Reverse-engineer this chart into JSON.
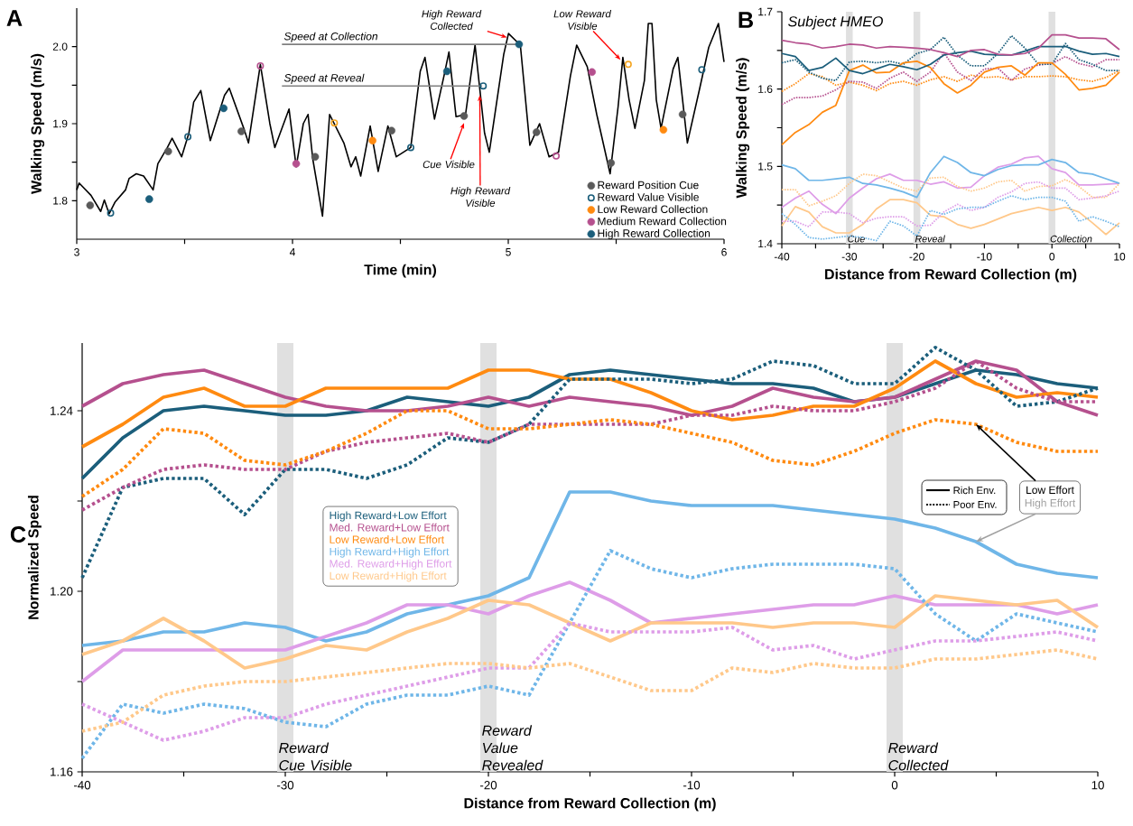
{
  "chart_data": [
    {
      "type": "line",
      "title": "A",
      "xlabel": "Time (min)",
      "ylabel": "Walking Speed (m/s)",
      "xlim": [
        3,
        6
      ],
      "ylim": [
        1.75,
        2.05
      ],
      "xticks": [
        3,
        {
          "value": 3.5,
          "label": null
        },
        4,
        {
          "value": 4.5,
          "label": null
        },
        5,
        {
          "value": 5.5,
          "label": null
        },
        6
      ],
      "yticks": [
        1.8,
        {
          "value": 1.85,
          "label": null
        },
        1.9,
        {
          "value": 1.95,
          "label": null
        },
        {
          "value": 2,
          "label": "2.0"
        }
      ],
      "legend": "bottom right",
      "series": [
        {
          "color": "#000000",
          "x": [
            3.0,
            3.011,
            3.066,
            3.111,
            3.128,
            3.15,
            3.177,
            3.226,
            3.243,
            3.276,
            3.31,
            3.354,
            3.376,
            3.42,
            3.442,
            3.486,
            3.52,
            3.542,
            3.575,
            3.619,
            3.685,
            3.707,
            3.774,
            3.796,
            3.851,
            3.895,
            3.918,
            3.984,
            4.017,
            4.05,
            4.072,
            4.094,
            4.139,
            4.172,
            4.238,
            4.271,
            4.293,
            4.316,
            4.36,
            4.397,
            4.442,
            4.481,
            4.548,
            4.57,
            4.592,
            4.614,
            4.658,
            4.702,
            4.725,
            4.758,
            4.802,
            4.846,
            4.89,
            4.912,
            4.979,
            5.001,
            5.056,
            5.1,
            5.145,
            5.189,
            5.233,
            5.288,
            5.317,
            5.366,
            5.41,
            5.472,
            5.509,
            5.531,
            5.56,
            5.587,
            5.631,
            5.649,
            5.666,
            5.686,
            5.708,
            5.764,
            5.786,
            5.83,
            5.885,
            5.929,
            5.974,
            6.0
          ],
          "values": [
            1.814,
            1.823,
            1.807,
            1.786,
            1.801,
            1.783,
            1.798,
            1.814,
            1.829,
            1.835,
            1.832,
            1.814,
            1.848,
            1.869,
            1.881,
            1.857,
            1.888,
            1.928,
            1.943,
            1.878,
            1.937,
            1.946,
            1.894,
            1.875,
            1.977,
            1.9,
            1.869,
            1.919,
            1.844,
            1.9,
            1.912,
            1.854,
            1.78,
            1.912,
            1.875,
            1.844,
            1.857,
            1.832,
            1.897,
            1.838,
            1.897,
            1.857,
            1.869,
            1.919,
            1.968,
            1.986,
            1.906,
            1.962,
            1.993,
            1.909,
            1.912,
            2.002,
            1.888,
            1.863,
            1.99,
            2.017,
            2.002,
            1.872,
            1.9,
            1.857,
            1.863,
            1.962,
            2.002,
            1.974,
            1.912,
            1.835,
            1.922,
            1.986,
            1.931,
            1.894,
            1.956,
            2.03,
            2.03,
            1.931,
            1.894,
            1.971,
            1.986,
            1.875,
            1.943,
            1.999,
            2.03,
            1.98
          ]
        },
        {
          "type": "line",
          "name": "Speed at Collection",
          "color": "#808080",
          "x": [
            3.951,
            5.05
          ],
          "values": [
            2.003,
            2.003
          ]
        },
        {
          "type": "line",
          "name": "Speed at Reveal",
          "color": "#808080",
          "x": [
            3.951,
            4.879
          ],
          "values": [
            1.949,
            1.949
          ]
        },
        {
          "type": "scatter",
          "name": "Reward Position Cue",
          "color": "#5a5a5a",
          "marker": "circle",
          "x": [
            3.062,
            3.424,
            3.763,
            4.105,
            4.459,
            4.795,
            5.131,
            5.476,
            5.808
          ],
          "values": [
            1.794,
            1.864,
            1.89,
            1.857,
            1.891,
            1.91,
            1.889,
            1.849,
            1.912
          ]
        },
        {
          "type": "scatter",
          "name": "Reward Value Visible",
          "color": "#1b5e7b",
          "marker": "circle",
          "colors": [
            "#1b5e7b",
            "#1b5e7b",
            "#b5508e",
            "#f5a623",
            "#1b5e7b",
            "#1b5e7b",
            "#b5508e",
            "#f5a623",
            "#1b5e7b"
          ],
          "x": [
            3.157,
            3.515,
            3.851,
            4.194,
            4.548,
            4.884,
            5.222,
            5.556,
            5.897
          ],
          "values": [
            1.784,
            1.883,
            1.975,
            1.901,
            1.869,
            1.949,
            1.858,
            1.977,
            1.97
          ]
        },
        {
          "type": "scatter",
          "name": "Low Reward Collection",
          "color": "#ff8a10",
          "marker": "circle",
          "x": [
            4.371,
            5.719
          ],
          "values": [
            1.878,
            1.892
          ]
        },
        {
          "type": "scatter",
          "name": "Medium Reward Collection",
          "color": "#b5508e",
          "marker": "circle",
          "x": [
            4.017,
            5.388
          ],
          "values": [
            1.848,
            1.967
          ]
        },
        {
          "type": "scatter",
          "name": "High Reward Collection",
          "color": "#1b5e7b",
          "marker": "circle",
          "x": [
            3.336,
            3.681,
            4.716,
            5.05
          ],
          "values": [
            1.802,
            1.92,
            1.968,
            2.003
          ]
        }
      ],
      "annotations": [
        {
          "text": "High Reward Collected",
          "x": 4.994,
          "y": 2.012
        },
        {
          "text": "Low Reward Visible",
          "x": 5.52,
          "y": 1.983
        },
        {
          "text": "Cue Visible",
          "x": 4.795,
          "y": 1.901
        },
        {
          "text": "High Reward Visible",
          "x": 4.868,
          "y": 1.937
        }
      ]
    },
    {
      "type": "line",
      "title": "B",
      "subtitle": "Subject HMEO",
      "xlabel": "Distance from Reward Collection (m)",
      "ylabel": "Walking Speed (m/s)",
      "xlim": [
        -40,
        10
      ],
      "ylim": [
        1.4,
        1.7
      ],
      "xticks": [
        -40,
        {
          "value": -35,
          "label": null
        },
        -30,
        {
          "value": -25,
          "label": null
        },
        -20,
        {
          "value": -15,
          "label": null
        },
        -10,
        {
          "value": -5,
          "label": null
        },
        0,
        {
          "value": 5,
          "label": null
        },
        10
      ],
      "yticks": [
        1.4,
        {
          "value": 1.45,
          "label": null
        },
        1.5,
        {
          "value": 1.55,
          "label": null
        },
        1.6,
        {
          "value": 1.65,
          "label": null
        },
        1.7
      ],
      "bands": [
        {
          "axis": "x",
          "from": -30.5,
          "to": -29.5,
          "label": "Cue",
          "color": "#e0e0e0"
        },
        {
          "axis": "x",
          "from": -20.5,
          "to": -19.5,
          "label": "Reveal",
          "color": "#e0e0e0"
        },
        {
          "axis": "x",
          "from": -0.5,
          "to": 0.5,
          "label": "Collection",
          "color": "#e0e0e0"
        }
      ],
      "x": [
        -40,
        -38,
        -36,
        -34,
        -32,
        -30,
        -28,
        -26,
        -24,
        -22,
        -20,
        -18,
        -16,
        -14,
        -12,
        -10,
        -8,
        -6,
        -4,
        -2,
        0,
        2,
        4,
        6,
        8,
        10
      ],
      "series": [
        {
          "color": "#ffc88a",
          "line_style": "solid",
          "values": [
            1.423,
            1.448,
            1.441,
            1.422,
            1.414,
            1.414,
            1.425,
            1.445,
            1.457,
            1.457,
            1.453,
            1.437,
            1.435,
            1.425,
            1.42,
            1.425,
            1.432,
            1.439,
            1.443,
            1.447,
            1.443,
            1.447,
            1.441,
            1.427,
            1.412,
            1.427
          ]
        },
        {
          "color": "#de9de8",
          "line_style": "solid",
          "values": [
            1.447,
            1.459,
            1.468,
            1.451,
            1.439,
            1.459,
            1.472,
            1.484,
            1.49,
            1.482,
            1.482,
            1.477,
            1.48,
            1.472,
            1.473,
            1.488,
            1.499,
            1.503,
            1.511,
            1.513,
            1.497,
            1.492,
            1.476,
            1.476,
            1.477,
            1.478
          ]
        },
        {
          "color": "#6fb6e8",
          "line_style": "solid",
          "values": [
            1.502,
            1.497,
            1.482,
            1.482,
            1.484,
            1.486,
            1.478,
            1.476,
            1.472,
            1.467,
            1.46,
            1.492,
            1.513,
            1.505,
            1.492,
            1.488,
            1.496,
            1.501,
            1.502,
            1.502,
            1.509,
            1.505,
            1.492,
            1.49,
            1.484,
            1.478
          ]
        },
        {
          "color": "#ffc88a",
          "line_style": "dotted",
          "values": [
            1.47,
            1.47,
            1.449,
            1.455,
            1.462,
            1.478,
            1.49,
            1.488,
            1.48,
            1.472,
            1.468,
            1.485,
            1.486,
            1.474,
            1.468,
            1.472,
            1.48,
            1.482,
            1.468,
            1.474,
            1.475,
            1.483,
            1.474,
            1.46,
            1.46,
            1.478
          ]
        },
        {
          "color": "#de9de8",
          "line_style": "dotted",
          "values": [
            1.429,
            1.429,
            1.422,
            1.441,
            1.441,
            1.439,
            1.427,
            1.433,
            1.435,
            1.435,
            1.423,
            1.424,
            1.441,
            1.451,
            1.443,
            1.447,
            1.46,
            1.467,
            1.478,
            1.48,
            1.472,
            1.472,
            1.457,
            1.459,
            1.462,
            1.468
          ]
        },
        {
          "color": "#6fb6e8",
          "line_style": "dotted",
          "values": [
            1.439,
            1.425,
            1.408,
            1.406,
            1.408,
            1.41,
            1.408,
            1.404,
            1.429,
            1.423,
            1.41,
            1.443,
            1.438,
            1.445,
            1.447,
            1.447,
            1.455,
            1.462,
            1.457,
            1.46,
            1.46,
            1.455,
            1.429,
            1.435,
            1.429,
            1.422
          ]
        },
        {
          "color": "#ff8a10",
          "line_style": "dotted",
          "values": [
            1.597,
            1.607,
            1.62,
            1.616,
            1.605,
            1.609,
            1.605,
            1.598,
            1.607,
            1.61,
            1.605,
            1.612,
            1.616,
            1.61,
            1.618,
            1.615,
            1.616,
            1.612,
            1.616,
            1.616,
            1.617,
            1.616,
            1.612,
            1.61,
            1.615,
            1.624
          ]
        },
        {
          "color": "#b5508e",
          "line_style": "dotted",
          "values": [
            1.58,
            1.589,
            1.589,
            1.591,
            1.599,
            1.61,
            1.609,
            1.601,
            1.614,
            1.622,
            1.61,
            1.622,
            1.647,
            1.622,
            1.611,
            1.626,
            1.627,
            1.611,
            1.626,
            1.631,
            1.633,
            1.642,
            1.633,
            1.629,
            1.638,
            1.638
          ]
        },
        {
          "color": "#1b5e7b",
          "line_style": "dotted",
          "values": [
            1.634,
            1.638,
            1.622,
            1.614,
            1.611,
            1.635,
            1.636,
            1.634,
            1.636,
            1.632,
            1.646,
            1.651,
            1.667,
            1.644,
            1.63,
            1.63,
            1.646,
            1.669,
            1.653,
            1.632,
            1.632,
            1.659,
            1.638,
            1.632,
            1.624,
            1.624
          ]
        },
        {
          "color": "#ff8a10",
          "line_style": "solid",
          "values": [
            1.528,
            1.544,
            1.554,
            1.57,
            1.579,
            1.624,
            1.631,
            1.621,
            1.622,
            1.634,
            1.636,
            1.628,
            1.607,
            1.595,
            1.605,
            1.622,
            1.628,
            1.63,
            1.618,
            1.634,
            1.634,
            1.619,
            1.599,
            1.601,
            1.605,
            1.622
          ]
        },
        {
          "color": "#1b5e7b",
          "line_style": "solid",
          "values": [
            1.646,
            1.642,
            1.624,
            1.628,
            1.64,
            1.624,
            1.62,
            1.626,
            1.632,
            1.629,
            1.625,
            1.632,
            1.644,
            1.647,
            1.649,
            1.645,
            1.644,
            1.644,
            1.649,
            1.655,
            1.655,
            1.655,
            1.649,
            1.645,
            1.646,
            1.642
          ]
        },
        {
          "color": "#b5508e",
          "line_style": "solid",
          "values": [
            1.663,
            1.66,
            1.658,
            1.653,
            1.655,
            1.658,
            1.657,
            1.653,
            1.655,
            1.654,
            1.653,
            1.651,
            1.647,
            1.642,
            1.65,
            1.651,
            1.645,
            1.644,
            1.646,
            1.653,
            1.67,
            1.67,
            1.666,
            1.666,
            1.665,
            1.651
          ]
        }
      ]
    },
    {
      "type": "line",
      "title": "C",
      "xlabel": "Distance from Reward Collection (m)",
      "ylabel": "Normalized Speed",
      "xlim": [
        -40,
        10
      ],
      "ylim": [
        1.16,
        1.255
      ],
      "xticks": [
        -40,
        {
          "value": -35,
          "label": null
        },
        -30,
        {
          "value": -25,
          "label": null
        },
        -20,
        {
          "value": -15,
          "label": null
        },
        -10,
        {
          "value": -5,
          "label": null
        },
        0,
        {
          "value": 5,
          "label": null
        },
        10
      ],
      "yticks": [
        1.16,
        {
          "value": 1.18,
          "label": null
        },
        {
          "value": 1.2,
          "label": "1.20"
        },
        {
          "value": 1.22,
          "label": null
        },
        1.24
      ],
      "legend": "left",
      "bands": [
        {
          "axis": "x",
          "from": -30.4,
          "to": -29.6,
          "label": "Reward Cue Visible",
          "color": "#e0e0e0"
        },
        {
          "axis": "x",
          "from": -20.4,
          "to": -19.6,
          "label": "Reward Value Revealed",
          "color": "#e0e0e0"
        },
        {
          "axis": "x",
          "from": -0.4,
          "to": 0.4,
          "label": "Reward Collected",
          "color": "#e0e0e0"
        }
      ],
      "x": [
        -40,
        -38,
        -36,
        -34,
        -32,
        -30,
        -28,
        -26,
        -24,
        -22,
        -20,
        -18,
        -16,
        -14,
        -12,
        -10,
        -8,
        -6,
        -4,
        -2,
        0,
        2,
        4,
        6,
        8,
        10
      ],
      "series": [
        {
          "name": "High Reward+Low Effort",
          "color": "#1b5e7b",
          "line_style": "solid",
          "values": [
            1.225,
            1.234,
            1.24,
            1.241,
            1.24,
            1.239,
            1.239,
            1.24,
            1.243,
            1.242,
            1.241,
            1.243,
            1.248,
            1.249,
            1.248,
            1.247,
            1.246,
            1.246,
            1.245,
            1.242,
            1.243,
            1.246,
            1.249,
            1.248,
            1.246,
            1.245
          ]
        },
        {
          "name": "Med. Reward+Low Effort",
          "color": "#b5508e",
          "line_style": "solid",
          "values": [
            1.241,
            1.246,
            1.248,
            1.249,
            1.246,
            1.243,
            1.241,
            1.24,
            1.24,
            1.241,
            1.243,
            1.241,
            1.243,
            1.242,
            1.241,
            1.239,
            1.241,
            1.245,
            1.243,
            1.242,
            1.243,
            1.247,
            1.251,
            1.249,
            1.242,
            1.239
          ]
        },
        {
          "name": "Low Reward+Low Effort",
          "color": "#ff8a10",
          "line_style": "solid",
          "values": [
            1.232,
            1.237,
            1.243,
            1.245,
            1.241,
            1.241,
            1.245,
            1.245,
            1.245,
            1.245,
            1.249,
            1.249,
            1.247,
            1.247,
            1.244,
            1.24,
            1.238,
            1.239,
            1.241,
            1.241,
            1.245,
            1.251,
            1.246,
            1.243,
            1.244,
            1.243
          ]
        },
        {
          "name": "High Reward+High Effort",
          "color": "#6fb6e8",
          "line_style": "solid",
          "values": [
            1.188,
            1.189,
            1.191,
            1.191,
            1.193,
            1.192,
            1.189,
            1.191,
            1.195,
            1.197,
            1.199,
            1.203,
            1.222,
            1.222,
            1.22,
            1.219,
            1.219,
            1.219,
            1.218,
            1.217,
            1.216,
            1.214,
            1.211,
            1.206,
            1.204,
            1.203
          ]
        },
        {
          "name": "Med. Reward+High Effort",
          "color": "#de9de8",
          "line_style": "solid",
          "values": [
            1.18,
            1.187,
            1.187,
            1.187,
            1.187,
            1.187,
            1.19,
            1.193,
            1.197,
            1.197,
            1.195,
            1.199,
            1.202,
            1.198,
            1.193,
            1.194,
            1.195,
            1.196,
            1.197,
            1.197,
            1.199,
            1.197,
            1.197,
            1.197,
            1.195,
            1.197
          ]
        },
        {
          "name": "Low Reward+High Effort",
          "color": "#ffc88a",
          "line_style": "solid",
          "values": [
            1.186,
            1.189,
            1.194,
            1.189,
            1.183,
            1.185,
            1.188,
            1.187,
            1.191,
            1.194,
            1.198,
            1.197,
            1.193,
            1.189,
            1.193,
            1.193,
            1.193,
            1.192,
            1.193,
            1.193,
            1.192,
            1.199,
            1.198,
            1.197,
            1.198,
            1.192
          ]
        },
        {
          "color": "#1b5e7b",
          "line_style": "dotted",
          "values": [
            1.203,
            1.223,
            1.225,
            1.225,
            1.217,
            1.227,
            1.227,
            1.225,
            1.228,
            1.234,
            1.233,
            1.237,
            1.247,
            1.247,
            1.247,
            1.246,
            1.247,
            1.251,
            1.25,
            1.246,
            1.246,
            1.254,
            1.249,
            1.241,
            1.242,
            1.245
          ]
        },
        {
          "color": "#b5508e",
          "line_style": "dotted",
          "values": [
            1.218,
            1.223,
            1.227,
            1.228,
            1.227,
            1.227,
            1.231,
            1.233,
            1.234,
            1.235,
            1.233,
            1.237,
            1.237,
            1.237,
            1.237,
            1.239,
            1.239,
            1.241,
            1.24,
            1.24,
            1.242,
            1.245,
            1.251,
            1.245,
            1.242,
            1.242
          ]
        },
        {
          "color": "#ff8a10",
          "line_style": "dotted",
          "values": [
            1.221,
            1.227,
            1.236,
            1.235,
            1.229,
            1.228,
            1.231,
            1.235,
            1.24,
            1.24,
            1.236,
            1.236,
            1.237,
            1.238,
            1.237,
            1.235,
            1.233,
            1.229,
            1.228,
            1.231,
            1.235,
            1.238,
            1.237,
            1.233,
            1.231,
            1.231
          ]
        },
        {
          "color": "#6fb6e8",
          "line_style": "dotted",
          "values": [
            1.163,
            1.175,
            1.173,
            1.175,
            1.174,
            1.171,
            1.17,
            1.175,
            1.177,
            1.177,
            1.179,
            1.177,
            1.193,
            1.209,
            1.205,
            1.203,
            1.205,
            1.206,
            1.206,
            1.206,
            1.205,
            1.195,
            1.189,
            1.195,
            1.193,
            1.191
          ]
        },
        {
          "color": "#de9de8",
          "line_style": "dotted",
          "values": [
            1.175,
            1.171,
            1.167,
            1.169,
            1.172,
            1.172,
            1.175,
            1.177,
            1.179,
            1.181,
            1.183,
            1.183,
            1.193,
            1.191,
            1.191,
            1.191,
            1.192,
            1.187,
            1.188,
            1.185,
            1.187,
            1.189,
            1.189,
            1.19,
            1.191,
            1.189
          ]
        },
        {
          "color": "#ffc88a",
          "line_style": "dotted",
          "values": [
            1.169,
            1.171,
            1.177,
            1.179,
            1.18,
            1.18,
            1.181,
            1.182,
            1.183,
            1.184,
            1.184,
            1.183,
            1.184,
            1.181,
            1.178,
            1.178,
            1.183,
            1.182,
            1.184,
            1.183,
            1.183,
            1.185,
            1.185,
            1.186,
            1.187,
            1.185
          ]
        }
      ],
      "annotations": [
        "Rich Env.",
        "Poor Env.",
        {
          "text": "Low Effort",
          "x": 4,
          "y": 1.237
        },
        {
          "text": "High Effort",
          "x": 4,
          "y": 1.211
        }
      ]
    }
  ]
}
